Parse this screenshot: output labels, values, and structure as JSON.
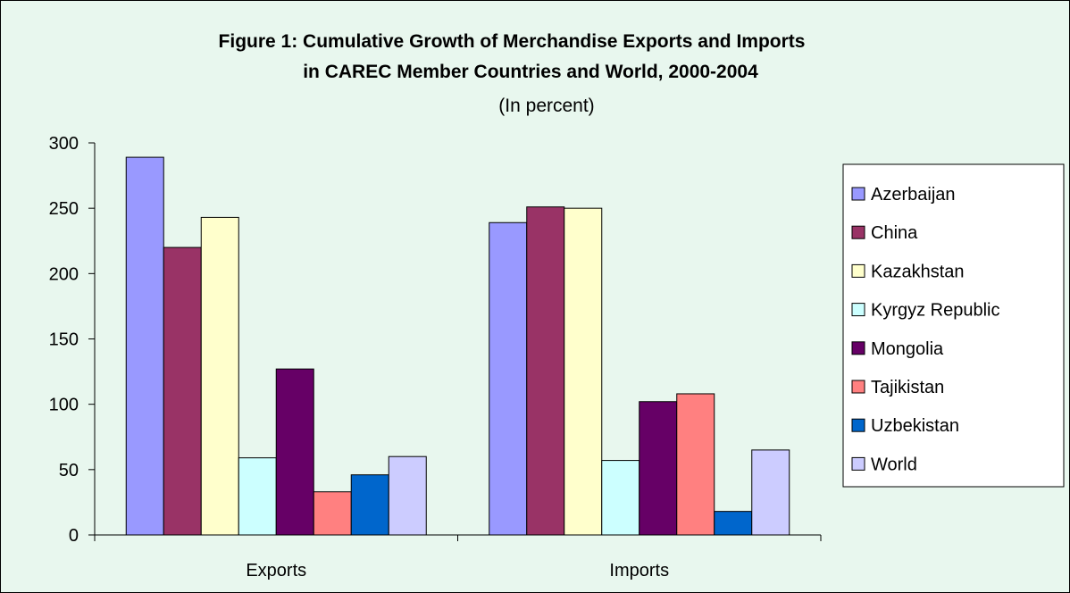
{
  "chart_data": {
    "type": "bar",
    "title": "Figure 1: Cumulative Growth of Merchandise Exports and Imports",
    "title_line2": "in CAREC Member Countries and World, 2000-2004",
    "subtitle": "(In percent)",
    "categories": [
      "Exports",
      "Imports"
    ],
    "ylim": [
      0,
      300
    ],
    "yticks": [
      0,
      50,
      100,
      150,
      200,
      250,
      300
    ],
    "grid": false,
    "legend_position": "right",
    "series": [
      {
        "name": "Azerbaijan",
        "color": "#9999ff",
        "values": [
          289,
          239
        ]
      },
      {
        "name": "China",
        "color": "#993366",
        "values": [
          220,
          251
        ]
      },
      {
        "name": "Kazakhstan",
        "color": "#ffffcc",
        "values": [
          243,
          250
        ]
      },
      {
        "name": "Kyrgyz Republic",
        "color": "#ccffff",
        "values": [
          59,
          57
        ]
      },
      {
        "name": "Mongolia",
        "color": "#660066",
        "values": [
          127,
          102
        ]
      },
      {
        "name": "Tajikistan",
        "color": "#ff8080",
        "values": [
          33,
          108
        ]
      },
      {
        "name": "Uzbekistan",
        "color": "#0066cc",
        "values": [
          46,
          18
        ]
      },
      {
        "name": "World",
        "color": "#ccccff",
        "values": [
          60,
          65
        ]
      }
    ]
  }
}
